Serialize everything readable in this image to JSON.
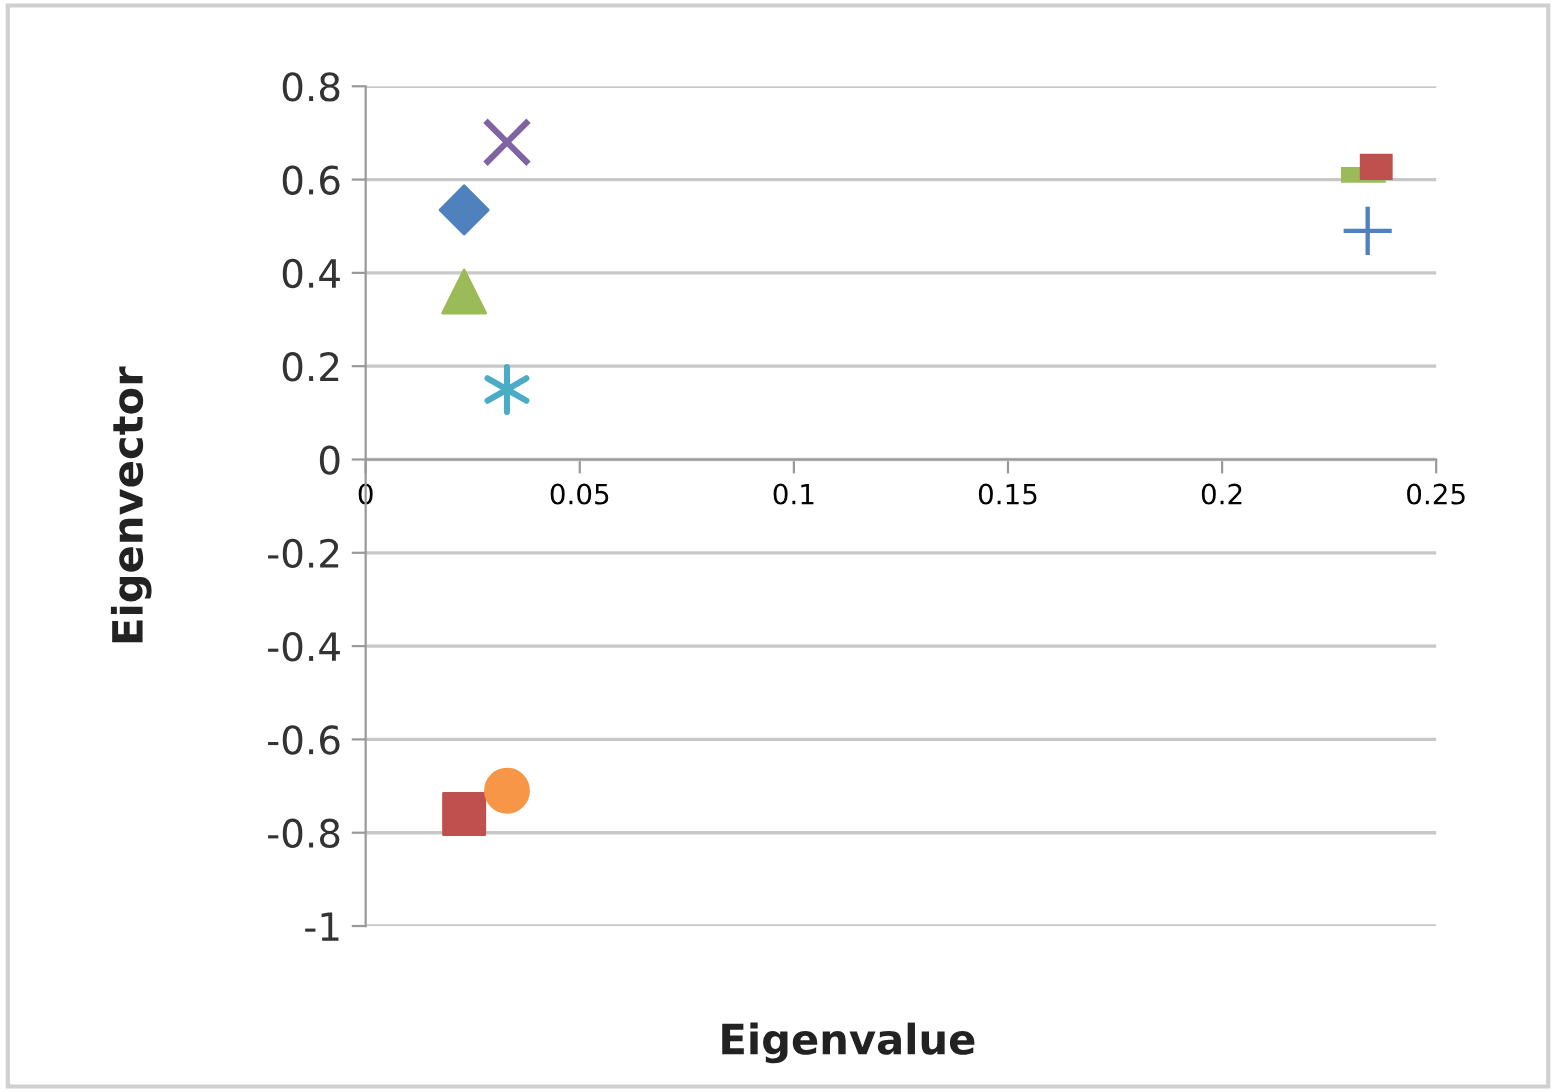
{
  "chart_data": {
    "type": "scatter",
    "xlabel": "Eigenvalue",
    "ylabel": "Eigenvector",
    "xlim": [
      0,
      0.25
    ],
    "xticks": [
      0,
      0.05,
      0.1,
      0.15,
      0.2,
      0.25
    ],
    "ylim": [
      -1,
      0.8
    ],
    "yticks": [
      -1,
      -0.8,
      -0.6,
      -0.4,
      -0.2,
      0,
      0.2,
      0.4,
      0.6,
      0.8
    ],
    "grid": "y",
    "legend": false,
    "series": [
      {
        "color": "#4f81bd",
        "marker": "diamond",
        "x": [
          0.023
        ],
        "values": [
          0.535
        ]
      },
      {
        "color": "#c0504d",
        "marker": "square",
        "x": [
          0.023
        ],
        "values": [
          -0.76
        ]
      },
      {
        "color": "#9bbb59",
        "marker": "triangle",
        "x": [
          0.023
        ],
        "values": [
          0.36
        ]
      },
      {
        "color": "#8064a2",
        "marker": "cross",
        "x": [
          0.033
        ],
        "values": [
          0.68
        ]
      },
      {
        "color": "#4bacc6",
        "marker": "cross",
        "x": [
          0.033
        ],
        "values": [
          0.15
        ]
      },
      {
        "color": "#f79646",
        "marker": "circle",
        "x": [
          0.033
        ],
        "values": [
          -0.71
        ]
      },
      {
        "color": "#4f81bd",
        "marker": "cross",
        "x": [
          0.234
        ],
        "values": [
          0.49
        ]
      },
      {
        "color": "#c0504d",
        "marker": "square",
        "x": [
          0.236
        ],
        "values": [
          0.62
        ]
      },
      {
        "color": "#9bbb59",
        "marker": "square",
        "x": [
          0.233
        ],
        "values": [
          0.61
        ]
      }
    ]
  }
}
